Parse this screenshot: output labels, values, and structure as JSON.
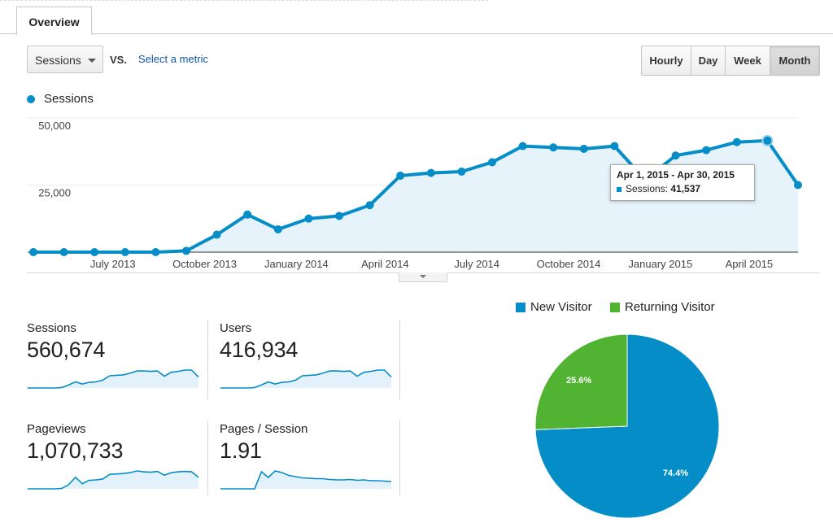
{
  "tab": {
    "label": "Overview"
  },
  "toolbar": {
    "metric": "Sessions",
    "vs": "VS.",
    "select_metric": "Select a metric",
    "granularity": [
      {
        "label": "Hourly",
        "active": false
      },
      {
        "label": "Day",
        "active": false
      },
      {
        "label": "Week",
        "active": false
      },
      {
        "label": "Month",
        "active": true
      }
    ]
  },
  "legend": {
    "label": "Sessions",
    "color": "#058dc7"
  },
  "chart_data": {
    "type": "area",
    "series_name": "Sessions",
    "color": "#058dc7",
    "fill": "#e6f3fb",
    "ylim": [
      0,
      50000
    ],
    "y_ticks": [
      {
        "value": 50000,
        "label": "50,000"
      },
      {
        "value": 25000,
        "label": "25,000"
      }
    ],
    "x_tick_labels": [
      {
        "label": "July 2013",
        "index": 2.6
      },
      {
        "label": "October 2013",
        "index": 5.6
      },
      {
        "label": "January 2014",
        "index": 8.6
      },
      {
        "label": "April 2014",
        "index": 11.5
      },
      {
        "label": "July 2014",
        "index": 14.5
      },
      {
        "label": "October 2014",
        "index": 17.5
      },
      {
        "label": "January 2015",
        "index": 20.5
      },
      {
        "label": "April 2015",
        "index": 23.4
      }
    ],
    "values": [
      0,
      0,
      0,
      0,
      0,
      500,
      6500,
      14000,
      8500,
      12500,
      13500,
      17500,
      28500,
      29500,
      30000,
      33500,
      39500,
      39000,
      38500,
      39500,
      27000,
      36000,
      38000,
      41000,
      41537,
      25000
    ],
    "highlight_index": 24
  },
  "tooltip": {
    "date": "Apr 1, 2015 - Apr 30, 2015",
    "metric": "Sessions:",
    "value": "41,537"
  },
  "stats": [
    {
      "label": "Sessions",
      "value": "560,674",
      "spark": [
        0,
        0,
        0,
        0,
        0,
        1,
        7,
        14,
        9,
        13,
        14,
        18,
        28,
        29,
        30,
        34,
        39,
        39,
        38,
        39,
        27,
        36,
        38,
        41,
        41,
        25
      ]
    },
    {
      "label": "Users",
      "value": "416,934",
      "spark": [
        0,
        0,
        0,
        0,
        0,
        1,
        7,
        14,
        9,
        13,
        14,
        18,
        28,
        29,
        30,
        34,
        39,
        39,
        38,
        39,
        27,
        36,
        38,
        41,
        41,
        25
      ]
    },
    {
      "label": "Pageviews",
      "value": "1,070,733",
      "spark": [
        0,
        0,
        0,
        0,
        0,
        1,
        10,
        27,
        12,
        20,
        21,
        23,
        34,
        35,
        36,
        38,
        42,
        40,
        39,
        41,
        32,
        38,
        40,
        41,
        40,
        27
      ]
    },
    {
      "label": "Pages / Session",
      "value": "1.91",
      "spark": [
        0,
        0,
        0,
        0,
        0,
        0,
        42,
        28,
        44,
        40,
        33,
        30,
        27,
        26,
        25,
        25,
        23,
        22,
        22,
        23,
        21,
        22,
        20,
        20,
        19,
        18
      ]
    }
  ],
  "pie": {
    "legend": [
      {
        "label": "New Visitor",
        "color": "#058dc7"
      },
      {
        "label": "Returning Visitor",
        "color": "#50b432"
      }
    ],
    "slices": [
      {
        "name": "New Visitor",
        "value": 74.4,
        "label": "74.4%",
        "color": "#058dc7"
      },
      {
        "name": "Returning Visitor",
        "value": 25.6,
        "label": "25.6%",
        "color": "#50b432"
      }
    ]
  }
}
